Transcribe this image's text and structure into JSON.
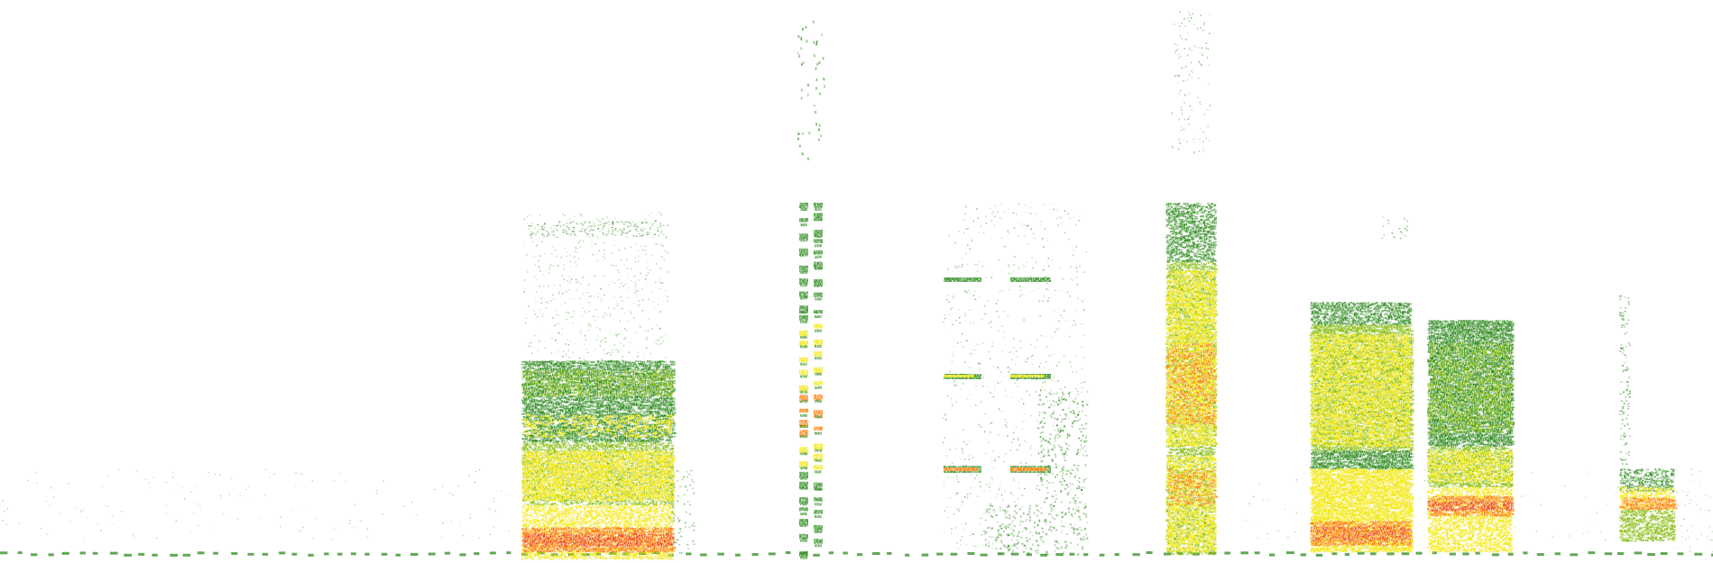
{
  "palette": {
    "background": "#ffffff",
    "low": "#2e8b1e",
    "mid": "#7fb800",
    "high": "#f2e600",
    "peak": "#ff7a00",
    "max": "#e83a1a"
  },
  "segments": [
    {
      "id": "blob-a"
    },
    {
      "id": "stripe-b"
    },
    {
      "id": "double-block-c"
    },
    {
      "id": "tall-column-d"
    },
    {
      "id": "block-e"
    },
    {
      "id": "block-f"
    },
    {
      "id": "small-g"
    }
  ]
}
